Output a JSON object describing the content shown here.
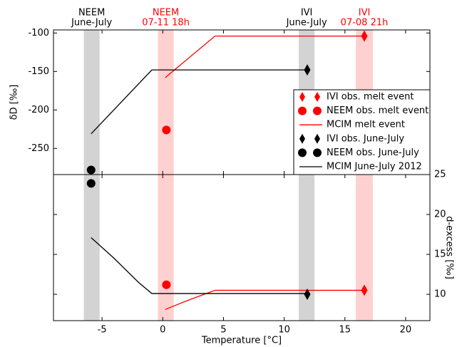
{
  "chart_data": [
    {
      "type": "line",
      "ylabel": "δD [‰]",
      "xlabel": "Temperature [°C]",
      "xlim": [
        -9,
        22
      ],
      "xticks": [
        -5,
        0,
        5,
        10,
        15,
        20
      ],
      "ylim": [
        -284,
        -96
      ],
      "yticks": [
        -100,
        -150,
        -200,
        -250
      ],
      "bands": [
        {
          "x": [
            -6.5,
            -5.2
          ],
          "color": "#d3d3d3",
          "label": [
            "NEEM",
            "June-July"
          ],
          "label_color": "#000000"
        },
        {
          "x": [
            -0.4,
            0.9
          ],
          "color": "#ffd0d0",
          "label": [
            "NEEM",
            "07-11 18h"
          ],
          "label_color": "#ff0000"
        },
        {
          "x": [
            11.2,
            12.5
          ],
          "color": "#d3d3d3",
          "label": [
            "IVI",
            "June-July"
          ],
          "label_color": "#000000"
        },
        {
          "x": [
            15.9,
            17.3
          ],
          "color": "#ffd0d0",
          "label": [
            "IVI",
            "07-08 21h"
          ],
          "label_color": "#ff0000"
        }
      ],
      "series": [
        {
          "name": "IVI obs. melt event",
          "color": "#ff0000",
          "marker": "diamond",
          "x": [
            16.6
          ],
          "values": [
            -104
          ]
        },
        {
          "name": "NEEM obs. melt event",
          "color": "#ff0000",
          "marker": "circle",
          "x": [
            0.3
          ],
          "values": [
            -226
          ]
        },
        {
          "name": "MCIM melt event",
          "color": "#ff0000",
          "marker": "none",
          "x": [
            0.2,
            4.3,
            16.6
          ],
          "values": [
            -158,
            -104,
            -104
          ]
        },
        {
          "name": "IVI obs. June-July",
          "color": "#000000",
          "marker": "diamond",
          "x": [
            11.9
          ],
          "values": [
            -148
          ]
        },
        {
          "name": "NEEM obs. June-July",
          "color": "#000000",
          "marker": "circle",
          "x": [
            -5.9
          ],
          "values": [
            -278
          ]
        },
        {
          "name": "MCIM June-July 2012",
          "color": "#000000",
          "marker": "none",
          "x": [
            -5.9,
            -0.9,
            11.9
          ],
          "values": [
            -231,
            -148,
            -148
          ]
        }
      ]
    },
    {
      "type": "line",
      "ylabel": "d-excess [‰]",
      "y_side": "right",
      "ylim": [
        6.7,
        25
      ],
      "yticks": [
        25,
        20,
        15,
        10
      ],
      "series": [
        {
          "color": "#ff0000",
          "marker": "diamond",
          "x": [
            16.6
          ],
          "values": [
            10.5
          ]
        },
        {
          "color": "#ff0000",
          "marker": "circle",
          "x": [
            0.3
          ],
          "values": [
            11.2
          ]
        },
        {
          "color": "#ff0000",
          "marker": "none",
          "x": [
            0.2,
            2,
            4.3,
            16.6
          ],
          "values": [
            8.1,
            9.2,
            10.5,
            10.5
          ]
        },
        {
          "color": "#000000",
          "marker": "diamond",
          "x": [
            11.9
          ],
          "values": [
            10.0
          ]
        },
        {
          "color": "#000000",
          "marker": "circle",
          "x": [
            -5.9
          ],
          "values": [
            23.9
          ]
        },
        {
          "color": "#000000",
          "marker": "none",
          "x": [
            -5.9,
            -4,
            -2,
            -0.9,
            11.9
          ],
          "values": [
            17.1,
            14.5,
            11.5,
            10.1,
            10.1
          ]
        }
      ]
    }
  ]
}
